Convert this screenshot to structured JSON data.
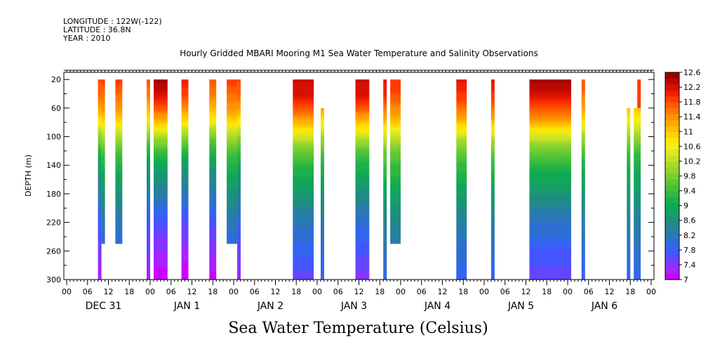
{
  "header": {
    "longitude": "LONGITUDE : 122W(-122)",
    "latitude": "LATITUDE : 36.8N",
    "year": "YEAR : 2010"
  },
  "chart_data": {
    "type": "heatmap",
    "title": "Hourly Gridded MBARI Mooring M1 Sea Water Temperature and Salinity Observations",
    "bottom_title": "Sea Water Temperature (Celsius)",
    "ylabel": "DEPTH (m)",
    "ylim": [
      300,
      10
    ],
    "y_reversed": true,
    "y_ticks": [
      20,
      60,
      100,
      140,
      180,
      220,
      260,
      300
    ],
    "y_tick_labels": [
      "20",
      "60",
      "100",
      "140",
      "180",
      "220",
      "260",
      "300"
    ],
    "x_start": "2009-12-31 00:00",
    "x_end": "2010-01-07 00:00",
    "x_tick_labels": [
      "00",
      "06",
      "12",
      "18",
      "00",
      "06",
      "12",
      "18",
      "00",
      "06",
      "12",
      "18",
      "00",
      "06",
      "12",
      "18",
      "00",
      "06",
      "12",
      "18",
      "00",
      "06",
      "12",
      "18",
      "00",
      "06",
      "12",
      "18",
      "00"
    ],
    "day_labels": [
      "DEC 31",
      "JAN  1",
      "JAN  2",
      "JAN  3",
      "JAN  4",
      "JAN  5",
      "JAN  6"
    ],
    "colorbar": {
      "min": 7.0,
      "max": 12.6,
      "step": 0.2,
      "labels": [
        "12.6",
        "12.2",
        "11.8",
        "11.4",
        "11",
        "10.6",
        "10.2",
        "9.8",
        "9.4",
        "9",
        "8.6",
        "8.2",
        "7.8",
        "7.4",
        "7"
      ],
      "colors": [
        "#cc00ff",
        "#aa22ff",
        "#8833ff",
        "#6644ff",
        "#4455ff",
        "#3366ee",
        "#2d6fd0",
        "#2a78b6",
        "#2680a0",
        "#208a88",
        "#1a9477",
        "#14a066",
        "#10a855",
        "#1cb04a",
        "#30b840",
        "#48c03a",
        "#5cc736",
        "#78cf30",
        "#90d52c",
        "#aadb28",
        "#c5e224",
        "#dde820",
        "#f4ee14",
        "#ffe800",
        "#ffd400",
        "#ffbe00",
        "#ffa800",
        "#ff9200",
        "#ff7800",
        "#ff5c00",
        "#ff3c00",
        "#f02000",
        "#d81000",
        "#bb0800"
      ],
      "top_color": "#990000"
    },
    "series": [
      {
        "start": "2009-12-31 09:00",
        "end": "2009-12-31 10:00",
        "depth_max": 300,
        "surface_temp": 12.0,
        "deep_temp": 7.2
      },
      {
        "start": "2009-12-31 10:00",
        "end": "2009-12-31 11:00",
        "depth_max": 250,
        "surface_temp": 12.0,
        "deep_temp": 7.7
      },
      {
        "start": "2009-12-31 14:00",
        "end": "2009-12-31 16:00",
        "depth_max": 250,
        "surface_temp": 12.0,
        "deep_temp": 7.7
      },
      {
        "start": "2009-12-31 23:00",
        "end": "2010-01-01 00:00",
        "depth_max": 300,
        "surface_temp": 11.9,
        "deep_temp": 7.2
      },
      {
        "start": "2010-01-01 01:00",
        "end": "2010-01-01 05:00",
        "depth_max": 300,
        "surface_temp": 12.6,
        "deep_temp": 7.0
      },
      {
        "start": "2010-01-01 09:00",
        "end": "2010-01-01 11:00",
        "depth_max": 300,
        "surface_temp": 12.2,
        "deep_temp": 7.0
      },
      {
        "start": "2010-01-01 17:00",
        "end": "2010-01-01 19:00",
        "depth_max": 300,
        "surface_temp": 11.9,
        "deep_temp": 7.1
      },
      {
        "start": "2010-01-01 22:00",
        "end": "2010-01-02 01:00",
        "depth_max": 250,
        "surface_temp": 12.0,
        "deep_temp": 7.7
      },
      {
        "start": "2010-01-02 01:00",
        "end": "2010-01-02 02:00",
        "depth_max": 300,
        "surface_temp": 12.0,
        "deep_temp": 7.3
      },
      {
        "start": "2010-01-02 17:00",
        "end": "2010-01-02 23:00",
        "depth_max": 300,
        "surface_temp": 12.5,
        "deep_temp": 7.6
      },
      {
        "start": "2010-01-03 01:00",
        "end": "2010-01-03 02:00",
        "depth_min": 60,
        "depth_max": 300,
        "surface_temp": 11.9,
        "deep_temp": 7.8
      },
      {
        "start": "2010-01-03 11:00",
        "end": "2010-01-03 15:00",
        "depth_max": 300,
        "surface_temp": 12.5,
        "deep_temp": 7.4
      },
      {
        "start": "2010-01-03 19:00",
        "end": "2010-01-03 20:00",
        "depth_max": 300,
        "surface_temp": 12.3,
        "deep_temp": 7.9
      },
      {
        "start": "2010-01-03 21:00",
        "end": "2010-01-04 00:00",
        "depth_max": 250,
        "surface_temp": 12.1,
        "deep_temp": 8.0
      },
      {
        "start": "2010-01-04 16:00",
        "end": "2010-01-04 19:00",
        "depth_max": 300,
        "surface_temp": 12.3,
        "deep_temp": 7.8
      },
      {
        "start": "2010-01-05 02:00",
        "end": "2010-01-05 03:00",
        "depth_max": 300,
        "surface_temp": 12.3,
        "deep_temp": 7.8
      },
      {
        "start": "2010-01-05 13:00",
        "end": "2010-01-06 01:00",
        "depth_max": 300,
        "surface_temp": 12.6,
        "deep_temp": 7.5
      },
      {
        "start": "2010-01-06 04:00",
        "end": "2010-01-06 05:00",
        "depth_max": 300,
        "surface_temp": 11.9,
        "deep_temp": 7.8
      },
      {
        "start": "2010-01-06 17:00",
        "end": "2010-01-06 18:00",
        "depth_min": 60,
        "depth_max": 300,
        "surface_temp": 11.6,
        "deep_temp": 7.9
      },
      {
        "start": "2010-01-06 19:00",
        "end": "2010-01-06 21:00",
        "depth_min": 60,
        "depth_max": 300,
        "surface_temp": 11.6,
        "deep_temp": 7.9
      },
      {
        "start": "2010-01-06 20:00",
        "end": "2010-01-06 21:00",
        "depth_min": 20,
        "depth_max": 60,
        "surface_temp": 12.1,
        "deep_temp": 11.4
      }
    ]
  }
}
